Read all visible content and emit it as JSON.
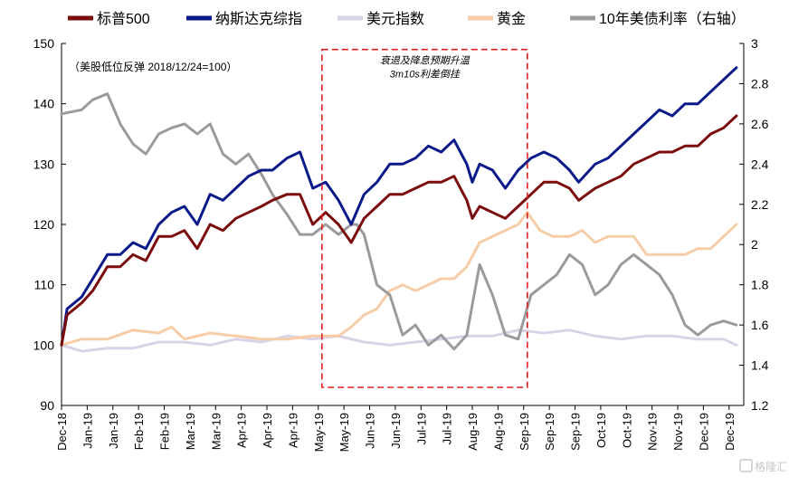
{
  "chart_data": {
    "type": "line",
    "legend_position": "top",
    "grid": false,
    "note": "（美股低位反弹 2018/12/24=100）",
    "annotation": {
      "lines": [
        "衰退及降息预期升温",
        "3m10s利差倒挂"
      ],
      "x_range": [
        "2019-05-15",
        "2019-09-04"
      ],
      "y_range": [
        93,
        149
      ]
    },
    "x_labels": [
      "Dec-18",
      "Jan-19",
      "Jan-19",
      "Feb-19",
      "Feb-19",
      "Mar-19",
      "Mar-19",
      "Apr-19",
      "Apr-19",
      "Apr-19",
      "May-19",
      "May-19",
      "Jun-19",
      "Jun-19",
      "Jul-19",
      "Jul-19",
      "Aug-19",
      "Aug-19",
      "Sep-19",
      "Sep-19",
      "Sep-19",
      "Oct-19",
      "Oct-19",
      "Nov-19",
      "Nov-19",
      "Dec-19",
      "Dec-19"
    ],
    "x_dates": [
      "2018-12-24",
      "2019-01-07",
      "2019-01-21",
      "2019-02-04",
      "2019-02-18",
      "2019-03-04",
      "2019-03-18",
      "2019-04-01",
      "2019-04-15",
      "2019-04-29",
      "2019-05-13",
      "2019-05-27",
      "2019-06-10",
      "2019-06-24",
      "2019-07-08",
      "2019-07-22",
      "2019-08-05",
      "2019-08-19",
      "2019-09-02",
      "2019-09-16",
      "2019-09-30",
      "2019-10-14",
      "2019-10-28",
      "2019-11-11",
      "2019-11-25",
      "2019-12-09",
      "2019-12-23"
    ],
    "y_left": {
      "min": 90,
      "max": 150,
      "ticks": [
        90,
        100,
        110,
        120,
        130,
        140,
        150
      ]
    },
    "y_right": {
      "min": 1.2,
      "max": 3.0,
      "ticks": [
        "1.2",
        "1.4",
        "1.6",
        "1.8",
        "2",
        "2.2",
        "2.4",
        "2.6",
        "2.8",
        "3"
      ],
      "label": ""
    },
    "series": [
      {
        "name": "标普500",
        "color": "#7b0d0d",
        "axis": "left",
        "points": [
          [
            "2018-12-24",
            100
          ],
          [
            "2018-12-27",
            105
          ],
          [
            "2019-01-04",
            107
          ],
          [
            "2019-01-10",
            109
          ],
          [
            "2019-01-18",
            113
          ],
          [
            "2019-01-25",
            113
          ],
          [
            "2019-02-01",
            115
          ],
          [
            "2019-02-08",
            114
          ],
          [
            "2019-02-15",
            118
          ],
          [
            "2019-02-22",
            118
          ],
          [
            "2019-03-01",
            119
          ],
          [
            "2019-03-08",
            116
          ],
          [
            "2019-03-15",
            120
          ],
          [
            "2019-03-22",
            119
          ],
          [
            "2019-03-29",
            121
          ],
          [
            "2019-04-05",
            122
          ],
          [
            "2019-04-12",
            123
          ],
          [
            "2019-04-18",
            124
          ],
          [
            "2019-04-26",
            125
          ],
          [
            "2019-05-03",
            125
          ],
          [
            "2019-05-10",
            120
          ],
          [
            "2019-05-17",
            122
          ],
          [
            "2019-05-24",
            120
          ],
          [
            "2019-05-31",
            117
          ],
          [
            "2019-06-07",
            121
          ],
          [
            "2019-06-14",
            123
          ],
          [
            "2019-06-21",
            125
          ],
          [
            "2019-06-28",
            125
          ],
          [
            "2019-07-05",
            126
          ],
          [
            "2019-07-12",
            127
          ],
          [
            "2019-07-19",
            127
          ],
          [
            "2019-07-26",
            128
          ],
          [
            "2019-08-02",
            124
          ],
          [
            "2019-08-05",
            121
          ],
          [
            "2019-08-09",
            123
          ],
          [
            "2019-08-16",
            122
          ],
          [
            "2019-08-23",
            121
          ],
          [
            "2019-08-30",
            123
          ],
          [
            "2019-09-06",
            125
          ],
          [
            "2019-09-13",
            127
          ],
          [
            "2019-09-20",
            127
          ],
          [
            "2019-09-27",
            126
          ],
          [
            "2019-10-02",
            124
          ],
          [
            "2019-10-11",
            126
          ],
          [
            "2019-10-18",
            127
          ],
          [
            "2019-10-25",
            128
          ],
          [
            "2019-11-01",
            130
          ],
          [
            "2019-11-08",
            131
          ],
          [
            "2019-11-15",
            132
          ],
          [
            "2019-11-22",
            132
          ],
          [
            "2019-11-29",
            133
          ],
          [
            "2019-12-06",
            133
          ],
          [
            "2019-12-13",
            135
          ],
          [
            "2019-12-20",
            136
          ],
          [
            "2019-12-27",
            138
          ]
        ]
      },
      {
        "name": "纳斯达克综指",
        "color": "#0a1a8a",
        "axis": "left",
        "points": [
          [
            "2018-12-24",
            100
          ],
          [
            "2018-12-27",
            106
          ],
          [
            "2019-01-04",
            108
          ],
          [
            "2019-01-10",
            111
          ],
          [
            "2019-01-18",
            115
          ],
          [
            "2019-01-25",
            115
          ],
          [
            "2019-02-01",
            117
          ],
          [
            "2019-02-08",
            116
          ],
          [
            "2019-02-15",
            120
          ],
          [
            "2019-02-22",
            122
          ],
          [
            "2019-03-01",
            123
          ],
          [
            "2019-03-08",
            120
          ],
          [
            "2019-03-15",
            125
          ],
          [
            "2019-03-22",
            124
          ],
          [
            "2019-03-29",
            126
          ],
          [
            "2019-04-05",
            128
          ],
          [
            "2019-04-12",
            129
          ],
          [
            "2019-04-18",
            129
          ],
          [
            "2019-04-26",
            131
          ],
          [
            "2019-05-03",
            132
          ],
          [
            "2019-05-10",
            126
          ],
          [
            "2019-05-17",
            127
          ],
          [
            "2019-05-24",
            124
          ],
          [
            "2019-05-31",
            120
          ],
          [
            "2019-06-07",
            125
          ],
          [
            "2019-06-14",
            127
          ],
          [
            "2019-06-21",
            130
          ],
          [
            "2019-06-28",
            130
          ],
          [
            "2019-07-05",
            131
          ],
          [
            "2019-07-12",
            133
          ],
          [
            "2019-07-19",
            132
          ],
          [
            "2019-07-26",
            134
          ],
          [
            "2019-08-02",
            130
          ],
          [
            "2019-08-05",
            127
          ],
          [
            "2019-08-09",
            130
          ],
          [
            "2019-08-16",
            129
          ],
          [
            "2019-08-23",
            126
          ],
          [
            "2019-08-30",
            129
          ],
          [
            "2019-09-06",
            131
          ],
          [
            "2019-09-13",
            132
          ],
          [
            "2019-09-20",
            131
          ],
          [
            "2019-09-27",
            129
          ],
          [
            "2019-10-02",
            127
          ],
          [
            "2019-10-11",
            130
          ],
          [
            "2019-10-18",
            131
          ],
          [
            "2019-10-25",
            133
          ],
          [
            "2019-11-01",
            135
          ],
          [
            "2019-11-08",
            137
          ],
          [
            "2019-11-15",
            139
          ],
          [
            "2019-11-22",
            138
          ],
          [
            "2019-11-29",
            140
          ],
          [
            "2019-12-06",
            140
          ],
          [
            "2019-12-13",
            142
          ],
          [
            "2019-12-20",
            144
          ],
          [
            "2019-12-27",
            146
          ]
        ]
      },
      {
        "name": "美元指数",
        "color": "#d9d3e8",
        "axis": "left",
        "points": [
          [
            "2018-12-24",
            100
          ],
          [
            "2019-01-04",
            99
          ],
          [
            "2019-01-18",
            99.5
          ],
          [
            "2019-02-01",
            99.5
          ],
          [
            "2019-02-15",
            100.5
          ],
          [
            "2019-03-01",
            100.5
          ],
          [
            "2019-03-15",
            100
          ],
          [
            "2019-03-29",
            101
          ],
          [
            "2019-04-12",
            100.5
          ],
          [
            "2019-04-26",
            101.5
          ],
          [
            "2019-05-10",
            101
          ],
          [
            "2019-05-24",
            101.5
          ],
          [
            "2019-06-07",
            100.5
          ],
          [
            "2019-06-21",
            100
          ],
          [
            "2019-07-05",
            100.5
          ],
          [
            "2019-07-19",
            101
          ],
          [
            "2019-08-02",
            101.5
          ],
          [
            "2019-08-16",
            101.5
          ],
          [
            "2019-08-30",
            102.5
          ],
          [
            "2019-09-13",
            102
          ],
          [
            "2019-09-27",
            102.5
          ],
          [
            "2019-10-11",
            101.5
          ],
          [
            "2019-10-25",
            101
          ],
          [
            "2019-11-08",
            101.5
          ],
          [
            "2019-11-22",
            101.5
          ],
          [
            "2019-12-06",
            101
          ],
          [
            "2019-12-20",
            101
          ],
          [
            "2019-12-27",
            100
          ]
        ]
      },
      {
        "name": "黄金",
        "color": "#f7cda8",
        "axis": "left",
        "points": [
          [
            "2018-12-24",
            100
          ],
          [
            "2019-01-04",
            101
          ],
          [
            "2019-01-18",
            101
          ],
          [
            "2019-02-01",
            102.5
          ],
          [
            "2019-02-15",
            102
          ],
          [
            "2019-02-22",
            103
          ],
          [
            "2019-03-01",
            101
          ],
          [
            "2019-03-15",
            102
          ],
          [
            "2019-03-29",
            101.5
          ],
          [
            "2019-04-12",
            101
          ],
          [
            "2019-04-26",
            101
          ],
          [
            "2019-05-10",
            101.5
          ],
          [
            "2019-05-24",
            101.5
          ],
          [
            "2019-05-31",
            103
          ],
          [
            "2019-06-07",
            105
          ],
          [
            "2019-06-14",
            106
          ],
          [
            "2019-06-21",
            109
          ],
          [
            "2019-06-28",
            110
          ],
          [
            "2019-07-05",
            109
          ],
          [
            "2019-07-12",
            110
          ],
          [
            "2019-07-19",
            111
          ],
          [
            "2019-07-26",
            111
          ],
          [
            "2019-08-02",
            113
          ],
          [
            "2019-08-09",
            117
          ],
          [
            "2019-08-16",
            118
          ],
          [
            "2019-08-23",
            119
          ],
          [
            "2019-08-30",
            120
          ],
          [
            "2019-09-04",
            122
          ],
          [
            "2019-09-11",
            119
          ],
          [
            "2019-09-18",
            118
          ],
          [
            "2019-09-27",
            118
          ],
          [
            "2019-10-04",
            119
          ],
          [
            "2019-10-11",
            117
          ],
          [
            "2019-10-18",
            118
          ],
          [
            "2019-10-25",
            118
          ],
          [
            "2019-11-01",
            118
          ],
          [
            "2019-11-08",
            115
          ],
          [
            "2019-11-15",
            115
          ],
          [
            "2019-11-22",
            115
          ],
          [
            "2019-11-29",
            115
          ],
          [
            "2019-12-06",
            116
          ],
          [
            "2019-12-13",
            116
          ],
          [
            "2019-12-20",
            118
          ],
          [
            "2019-12-27",
            120
          ]
        ]
      },
      {
        "name": "10年美债利率（右轴）",
        "color": "#9b9b9b",
        "axis": "right",
        "points": [
          [
            "2018-12-24",
            2.65
          ],
          [
            "2019-01-04",
            2.67
          ],
          [
            "2019-01-10",
            2.72
          ],
          [
            "2019-01-18",
            2.75
          ],
          [
            "2019-01-25",
            2.6
          ],
          [
            "2019-02-01",
            2.5
          ],
          [
            "2019-02-08",
            2.45
          ],
          [
            "2019-02-15",
            2.55
          ],
          [
            "2019-02-22",
            2.58
          ],
          [
            "2019-03-01",
            2.6
          ],
          [
            "2019-03-08",
            2.55
          ],
          [
            "2019-03-15",
            2.6
          ],
          [
            "2019-03-22",
            2.45
          ],
          [
            "2019-03-29",
            2.4
          ],
          [
            "2019-04-05",
            2.45
          ],
          [
            "2019-04-12",
            2.35
          ],
          [
            "2019-04-18",
            2.25
          ],
          [
            "2019-04-26",
            2.15
          ],
          [
            "2019-05-03",
            2.05
          ],
          [
            "2019-05-10",
            2.05
          ],
          [
            "2019-05-17",
            2.1
          ],
          [
            "2019-05-24",
            2.05
          ],
          [
            "2019-05-31",
            2.1
          ],
          [
            "2019-06-03",
            2.1
          ],
          [
            "2019-06-07",
            2.05
          ],
          [
            "2019-06-14",
            1.8
          ],
          [
            "2019-06-21",
            1.75
          ],
          [
            "2019-06-28",
            1.55
          ],
          [
            "2019-07-05",
            1.6
          ],
          [
            "2019-07-12",
            1.5
          ],
          [
            "2019-07-19",
            1.55
          ],
          [
            "2019-07-26",
            1.48
          ],
          [
            "2019-08-02",
            1.55
          ],
          [
            "2019-08-09",
            1.9
          ],
          [
            "2019-08-16",
            1.75
          ],
          [
            "2019-08-23",
            1.55
          ],
          [
            "2019-08-30",
            1.53
          ],
          [
            "2019-09-06",
            1.75
          ],
          [
            "2019-09-13",
            1.8
          ],
          [
            "2019-09-20",
            1.85
          ],
          [
            "2019-09-27",
            1.95
          ],
          [
            "2019-10-04",
            1.9
          ],
          [
            "2019-10-11",
            1.75
          ],
          [
            "2019-10-18",
            1.8
          ],
          [
            "2019-10-25",
            1.9
          ],
          [
            "2019-11-01",
            1.95
          ],
          [
            "2019-11-08",
            1.9
          ],
          [
            "2019-11-15",
            1.85
          ],
          [
            "2019-11-22",
            1.75
          ],
          [
            "2019-11-29",
            1.6
          ],
          [
            "2019-12-06",
            1.55
          ],
          [
            "2019-12-13",
            1.6
          ],
          [
            "2019-12-20",
            1.62
          ],
          [
            "2019-12-27",
            1.6
          ]
        ]
      }
    ]
  },
  "watermark": "格隆汇",
  "watermark_icon": "g-logo-icon"
}
